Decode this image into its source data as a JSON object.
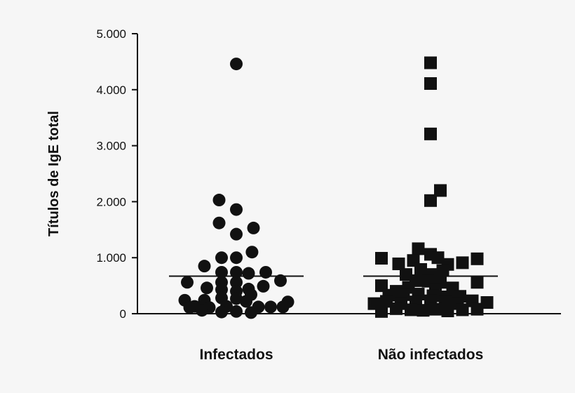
{
  "chart_data": {
    "type": "scatter",
    "title": "",
    "ylabel": "Títulos de IgE total",
    "xlabel": "",
    "categories": [
      "Infectados",
      "Não infectados"
    ],
    "ylim": [
      0,
      5000
    ],
    "yticks": [
      0,
      1000,
      2000,
      3000,
      4000,
      5000
    ],
    "ytick_labels": [
      "0",
      "1.000",
      "2.000",
      "3.000",
      "4.000",
      "5.000"
    ],
    "grid": false,
    "colors": {
      "points": "#111111",
      "axis": "#111111",
      "background": "#f6f6f6"
    },
    "series": [
      {
        "marker": "circle",
        "category": "Infectados",
        "mean": 670,
        "points": [
          {
            "j": 0.0,
            "y": 4460
          },
          {
            "j": -0.35,
            "y": 2030
          },
          {
            "j": 0.0,
            "y": 1860
          },
          {
            "j": -0.35,
            "y": 1620
          },
          {
            "j": 0.0,
            "y": 1420
          },
          {
            "j": 0.35,
            "y": 1530
          },
          {
            "j": -0.3,
            "y": 1000
          },
          {
            "j": 0.0,
            "y": 1000
          },
          {
            "j": 0.32,
            "y": 1100
          },
          {
            "j": -0.65,
            "y": 850
          },
          {
            "j": -0.3,
            "y": 740
          },
          {
            "j": 0.0,
            "y": 740
          },
          {
            "j": 0.25,
            "y": 720
          },
          {
            "j": 0.6,
            "y": 740
          },
          {
            "j": -1.0,
            "y": 560
          },
          {
            "j": -0.6,
            "y": 460
          },
          {
            "j": -0.3,
            "y": 560
          },
          {
            "j": 0.0,
            "y": 560
          },
          {
            "j": 0.25,
            "y": 440
          },
          {
            "j": 0.55,
            "y": 490
          },
          {
            "j": 0.9,
            "y": 590
          },
          {
            "j": -0.3,
            "y": 430
          },
          {
            "j": 0.0,
            "y": 400
          },
          {
            "j": 0.3,
            "y": 340
          },
          {
            "j": -1.05,
            "y": 240
          },
          {
            "j": -0.65,
            "y": 240
          },
          {
            "j": -0.3,
            "y": 280
          },
          {
            "j": 0.0,
            "y": 270
          },
          {
            "j": 0.2,
            "y": 220
          },
          {
            "j": 1.05,
            "y": 210
          },
          {
            "j": -0.85,
            "y": 130
          },
          {
            "j": -0.55,
            "y": 110
          },
          {
            "j": -0.2,
            "y": 130
          },
          {
            "j": 0.45,
            "y": 120
          },
          {
            "j": 0.7,
            "y": 120
          },
          {
            "j": 0.95,
            "y": 120
          },
          {
            "j": -0.95,
            "y": 110
          },
          {
            "j": -0.7,
            "y": 60
          },
          {
            "j": -0.3,
            "y": 30
          },
          {
            "j": 0.0,
            "y": 40
          },
          {
            "j": 0.3,
            "y": 20
          }
        ]
      },
      {
        "marker": "square",
        "category": "Não infectados",
        "mean": 670,
        "points": [
          {
            "j": 0.0,
            "y": 4480
          },
          {
            "j": 0.0,
            "y": 4110
          },
          {
            "j": 0.0,
            "y": 3210
          },
          {
            "j": 0.2,
            "y": 2200
          },
          {
            "j": 0.0,
            "y": 2020
          },
          {
            "j": -0.25,
            "y": 1160
          },
          {
            "j": 0.0,
            "y": 1060
          },
          {
            "j": 0.15,
            "y": 1000
          },
          {
            "j": -1.0,
            "y": 990
          },
          {
            "j": -0.65,
            "y": 890
          },
          {
            "j": -0.35,
            "y": 950
          },
          {
            "j": 0.35,
            "y": 880
          },
          {
            "j": 0.65,
            "y": 910
          },
          {
            "j": 0.95,
            "y": 980
          },
          {
            "j": -0.5,
            "y": 700
          },
          {
            "j": -0.2,
            "y": 790
          },
          {
            "j": 0.0,
            "y": 700
          },
          {
            "j": 0.25,
            "y": 770
          },
          {
            "j": -0.3,
            "y": 590
          },
          {
            "j": -0.05,
            "y": 580
          },
          {
            "j": 0.2,
            "y": 560
          },
          {
            "j": -1.0,
            "y": 500
          },
          {
            "j": -0.7,
            "y": 400
          },
          {
            "j": -0.45,
            "y": 470
          },
          {
            "j": 0.1,
            "y": 420
          },
          {
            "j": 0.45,
            "y": 460
          },
          {
            "j": 0.95,
            "y": 560
          },
          {
            "j": -0.85,
            "y": 330
          },
          {
            "j": -0.55,
            "y": 340
          },
          {
            "j": -0.25,
            "y": 350
          },
          {
            "j": 0.05,
            "y": 320
          },
          {
            "j": 0.35,
            "y": 300
          },
          {
            "j": 0.6,
            "y": 310
          },
          {
            "j": -1.15,
            "y": 180
          },
          {
            "j": -0.9,
            "y": 220
          },
          {
            "j": -0.6,
            "y": 180
          },
          {
            "j": -0.3,
            "y": 210
          },
          {
            "j": 0.0,
            "y": 230
          },
          {
            "j": 0.3,
            "y": 220
          },
          {
            "j": 0.55,
            "y": 180
          },
          {
            "j": 0.85,
            "y": 230
          },
          {
            "j": 1.15,
            "y": 200
          },
          {
            "j": -1.0,
            "y": 40
          },
          {
            "j": -0.7,
            "y": 90
          },
          {
            "j": -0.4,
            "y": 70
          },
          {
            "j": -0.15,
            "y": 60
          },
          {
            "j": 0.1,
            "y": 80
          },
          {
            "j": 0.35,
            "y": 50
          },
          {
            "j": 0.65,
            "y": 70
          },
          {
            "j": 0.95,
            "y": 80
          }
        ]
      }
    ]
  }
}
